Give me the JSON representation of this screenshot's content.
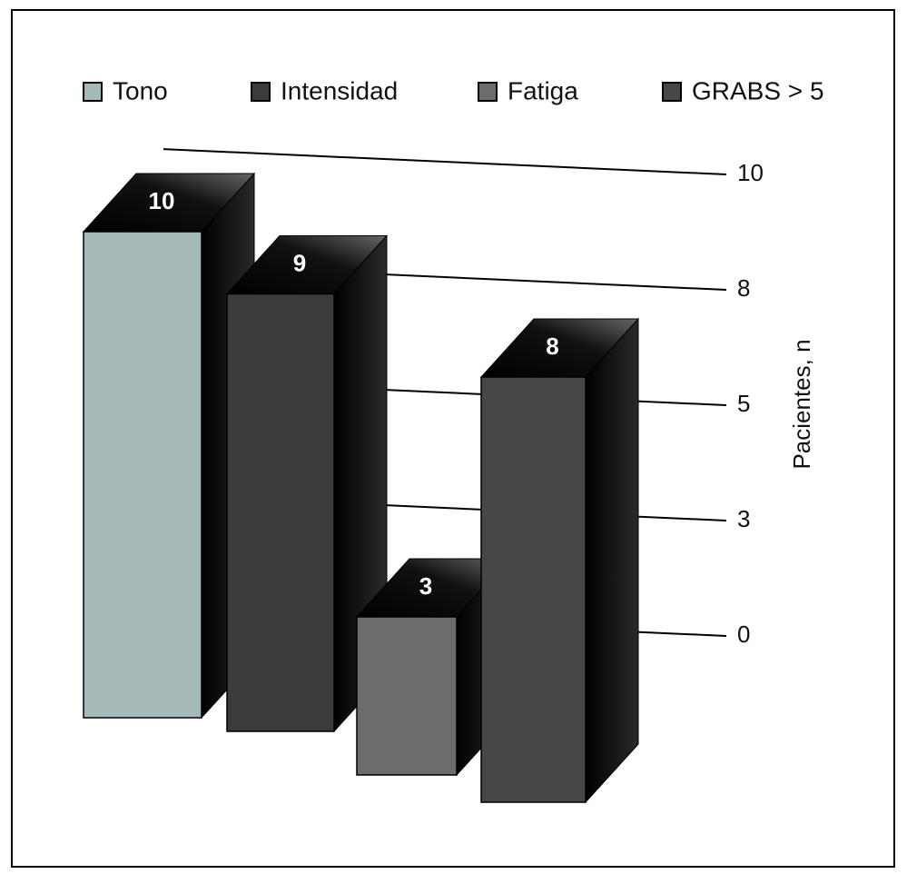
{
  "chart_data": {
    "type": "bar",
    "series": [
      {
        "name": "Tono",
        "color": "#a6b9b9",
        "values": [
          10
        ]
      },
      {
        "name": "Intensidad",
        "color": "#3b3b3b",
        "values": [
          9
        ]
      },
      {
        "name": "Fatiga",
        "color": "#6c6c6c",
        "values": [
          3
        ]
      },
      {
        "name": "GRABS > 5",
        "color": "#474747",
        "values": [
          8
        ]
      }
    ],
    "y_label": "Pacientes, n",
    "ylim": [
      0,
      10
    ],
    "yticks": [
      0,
      {
        "value": 2.5,
        "label": "3"
      },
      5,
      {
        "value": 7.5,
        "label": "8"
      },
      10
    ],
    "grid": true,
    "legend": "top"
  }
}
